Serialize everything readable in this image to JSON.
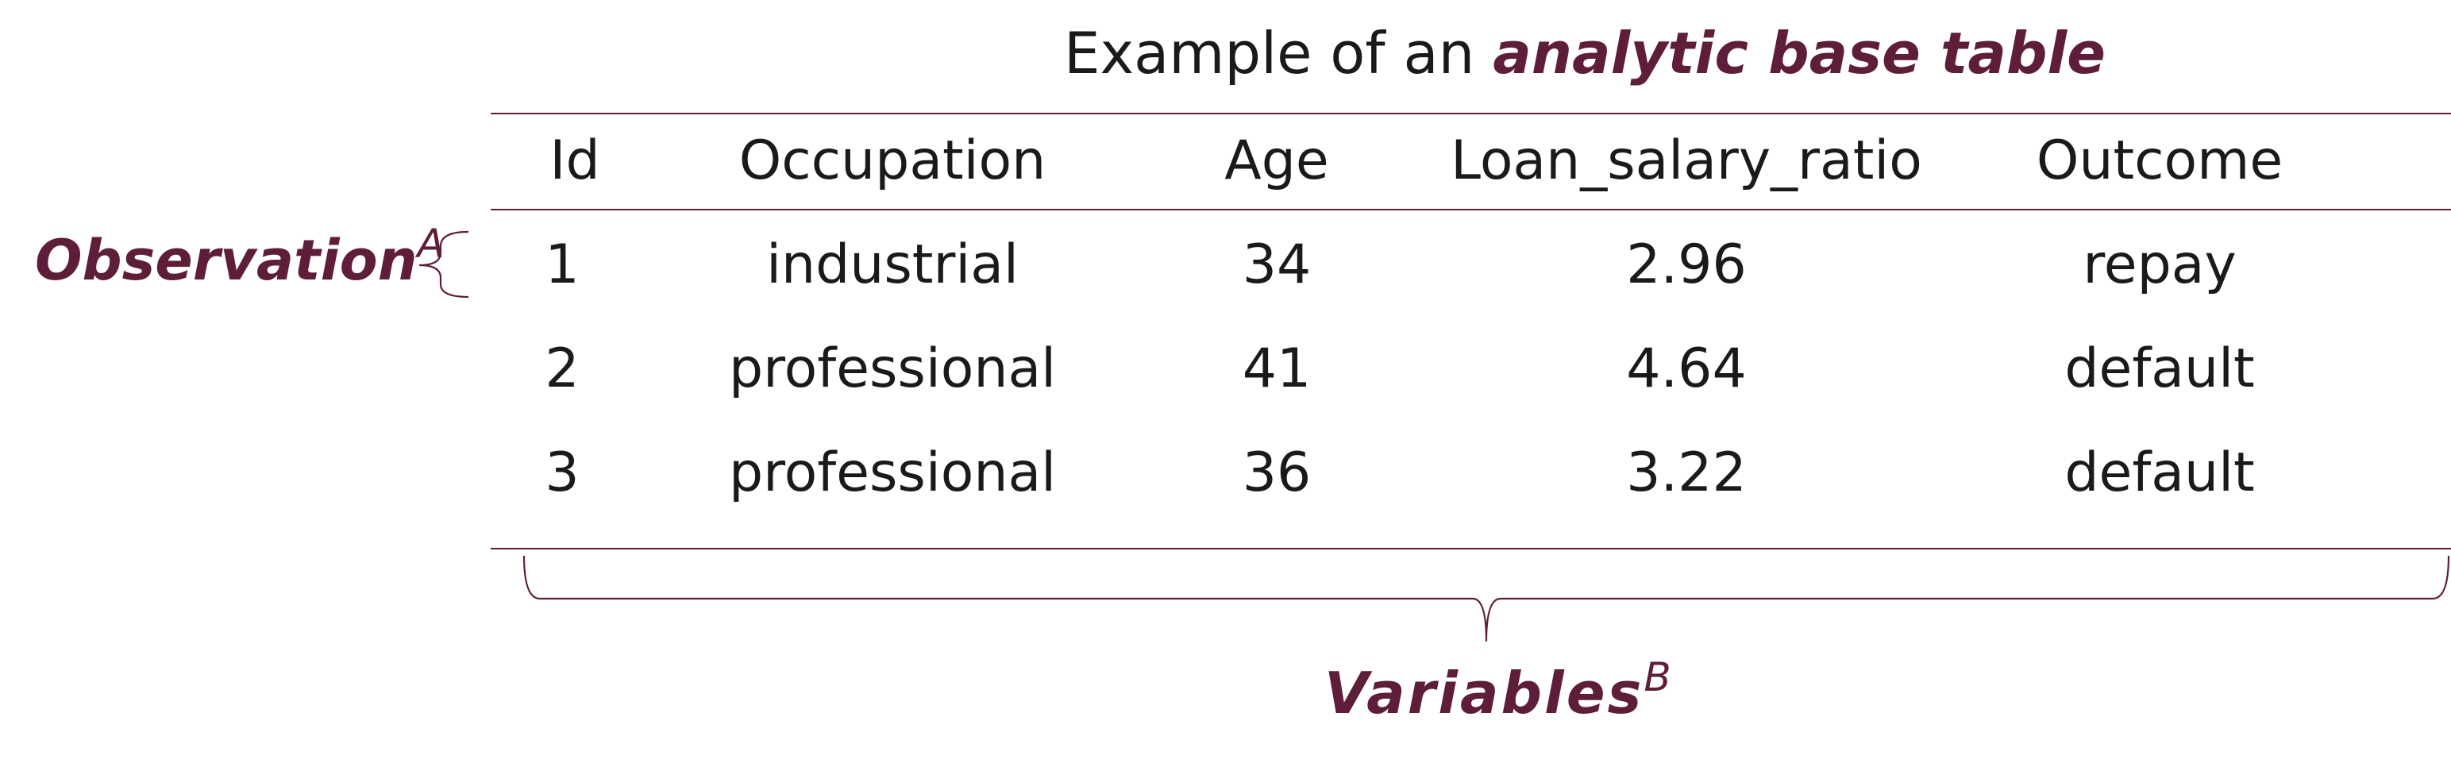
{
  "title": {
    "prefix": "Example of an ",
    "emphasis": "analytic base table"
  },
  "table": {
    "columns": [
      "Id",
      "Occupation",
      "Age",
      "Loan_salary_ratio",
      "Outcome"
    ],
    "rows": [
      [
        "1",
        "industrial",
        "34",
        "2.96",
        "repay"
      ],
      [
        "2",
        "professional",
        "41",
        "4.64",
        "default"
      ],
      [
        "3",
        "professional",
        "36",
        "3.22",
        "default"
      ]
    ]
  },
  "annotations": {
    "observation": {
      "label": "Observation",
      "superscript": "A"
    },
    "variables": {
      "label": "Variables",
      "superscript": "B"
    }
  },
  "colors": {
    "accent": "#5e1e39",
    "text": "#1a1a1a"
  }
}
